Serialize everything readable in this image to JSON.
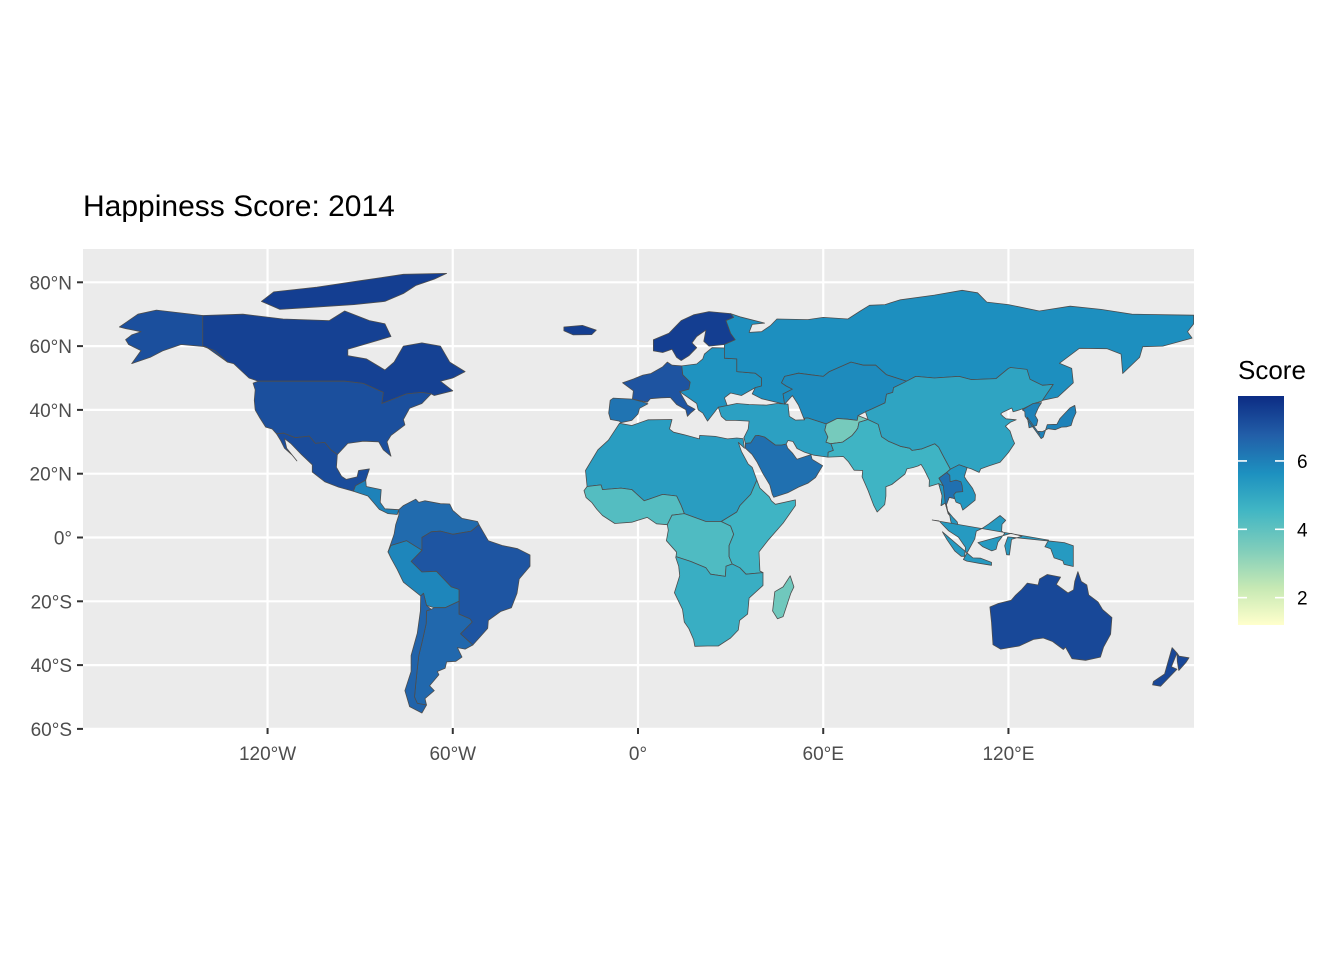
{
  "chart_data": {
    "type": "choropleth-map",
    "title": "Happiness Score: 2014",
    "legend": {
      "title": "Score",
      "ticks": [
        2,
        4,
        6
      ],
      "range": [
        1.2,
        7.9
      ],
      "palette": [
        "#ffffcc",
        "#c7e9b4",
        "#7fcdbb",
        "#41b6c4",
        "#1d91c0",
        "#225ea8",
        "#0c2c84"
      ],
      "placement": "right"
    },
    "x_axis": {
      "ticks": [
        "120°W",
        "60°W",
        "0°",
        "60°E",
        "120°E"
      ],
      "tick_values": [
        -120,
        -60,
        0,
        60,
        120
      ],
      "range": [
        -180,
        180
      ]
    },
    "y_axis": {
      "ticks": [
        "80°N",
        "60°N",
        "40°N",
        "20°N",
        "0°",
        "20°S",
        "40°S",
        "60°S"
      ],
      "tick_values": [
        80,
        60,
        40,
        20,
        0,
        -20,
        -40,
        -60
      ],
      "range": [
        -60,
        90
      ]
    },
    "grid": true,
    "background": "#ebebeb",
    "regions": [
      {
        "id": "canada",
        "score": 7.43
      },
      {
        "id": "alaska",
        "score": 7.12
      },
      {
        "id": "greenland-islands",
        "score": 7.5
      },
      {
        "id": "usa",
        "score": 7.12
      },
      {
        "id": "mexico",
        "score": 7.19
      },
      {
        "id": "central-america",
        "score": 6.0
      },
      {
        "id": "south-america-north",
        "score": 6.5
      },
      {
        "id": "brazil",
        "score": 6.98
      },
      {
        "id": "peru-bolivia",
        "score": 5.9
      },
      {
        "id": "argentina",
        "score": 6.57
      },
      {
        "id": "chile",
        "score": 6.67
      },
      {
        "id": "iceland-svalbard",
        "score": 7.5
      },
      {
        "id": "scandinavia",
        "score": 7.5
      },
      {
        "id": "western-europe",
        "score": 7.0
      },
      {
        "id": "eastern-europe",
        "score": 5.6
      },
      {
        "id": "iberia",
        "score": 6.3
      },
      {
        "id": "russia",
        "score": 5.7
      },
      {
        "id": "north-africa",
        "score": 5.3
      },
      {
        "id": "west-africa",
        "score": 4.2
      },
      {
        "id": "central-africa",
        "score": 4.3
      },
      {
        "id": "east-africa",
        "score": 4.6
      },
      {
        "id": "southern-africa",
        "score": 4.8
      },
      {
        "id": "madagascar",
        "score": 3.7
      },
      {
        "id": "arabia",
        "score": 6.4
      },
      {
        "id": "middle-east",
        "score": 5.2
      },
      {
        "id": "central-asia",
        "score": 5.8
      },
      {
        "id": "afghanistan",
        "score": 3.6
      },
      {
        "id": "south-asia",
        "score": 4.6
      },
      {
        "id": "china-mongolia",
        "score": 5.1
      },
      {
        "id": "southeast-asia",
        "score": 5.5
      },
      {
        "id": "thailand",
        "score": 6.4
      },
      {
        "id": "japan-korea",
        "score": 6.0
      },
      {
        "id": "indonesia",
        "score": 5.4
      },
      {
        "id": "australia",
        "score": 7.28
      },
      {
        "id": "new-zealand",
        "score": 7.29
      }
    ]
  }
}
